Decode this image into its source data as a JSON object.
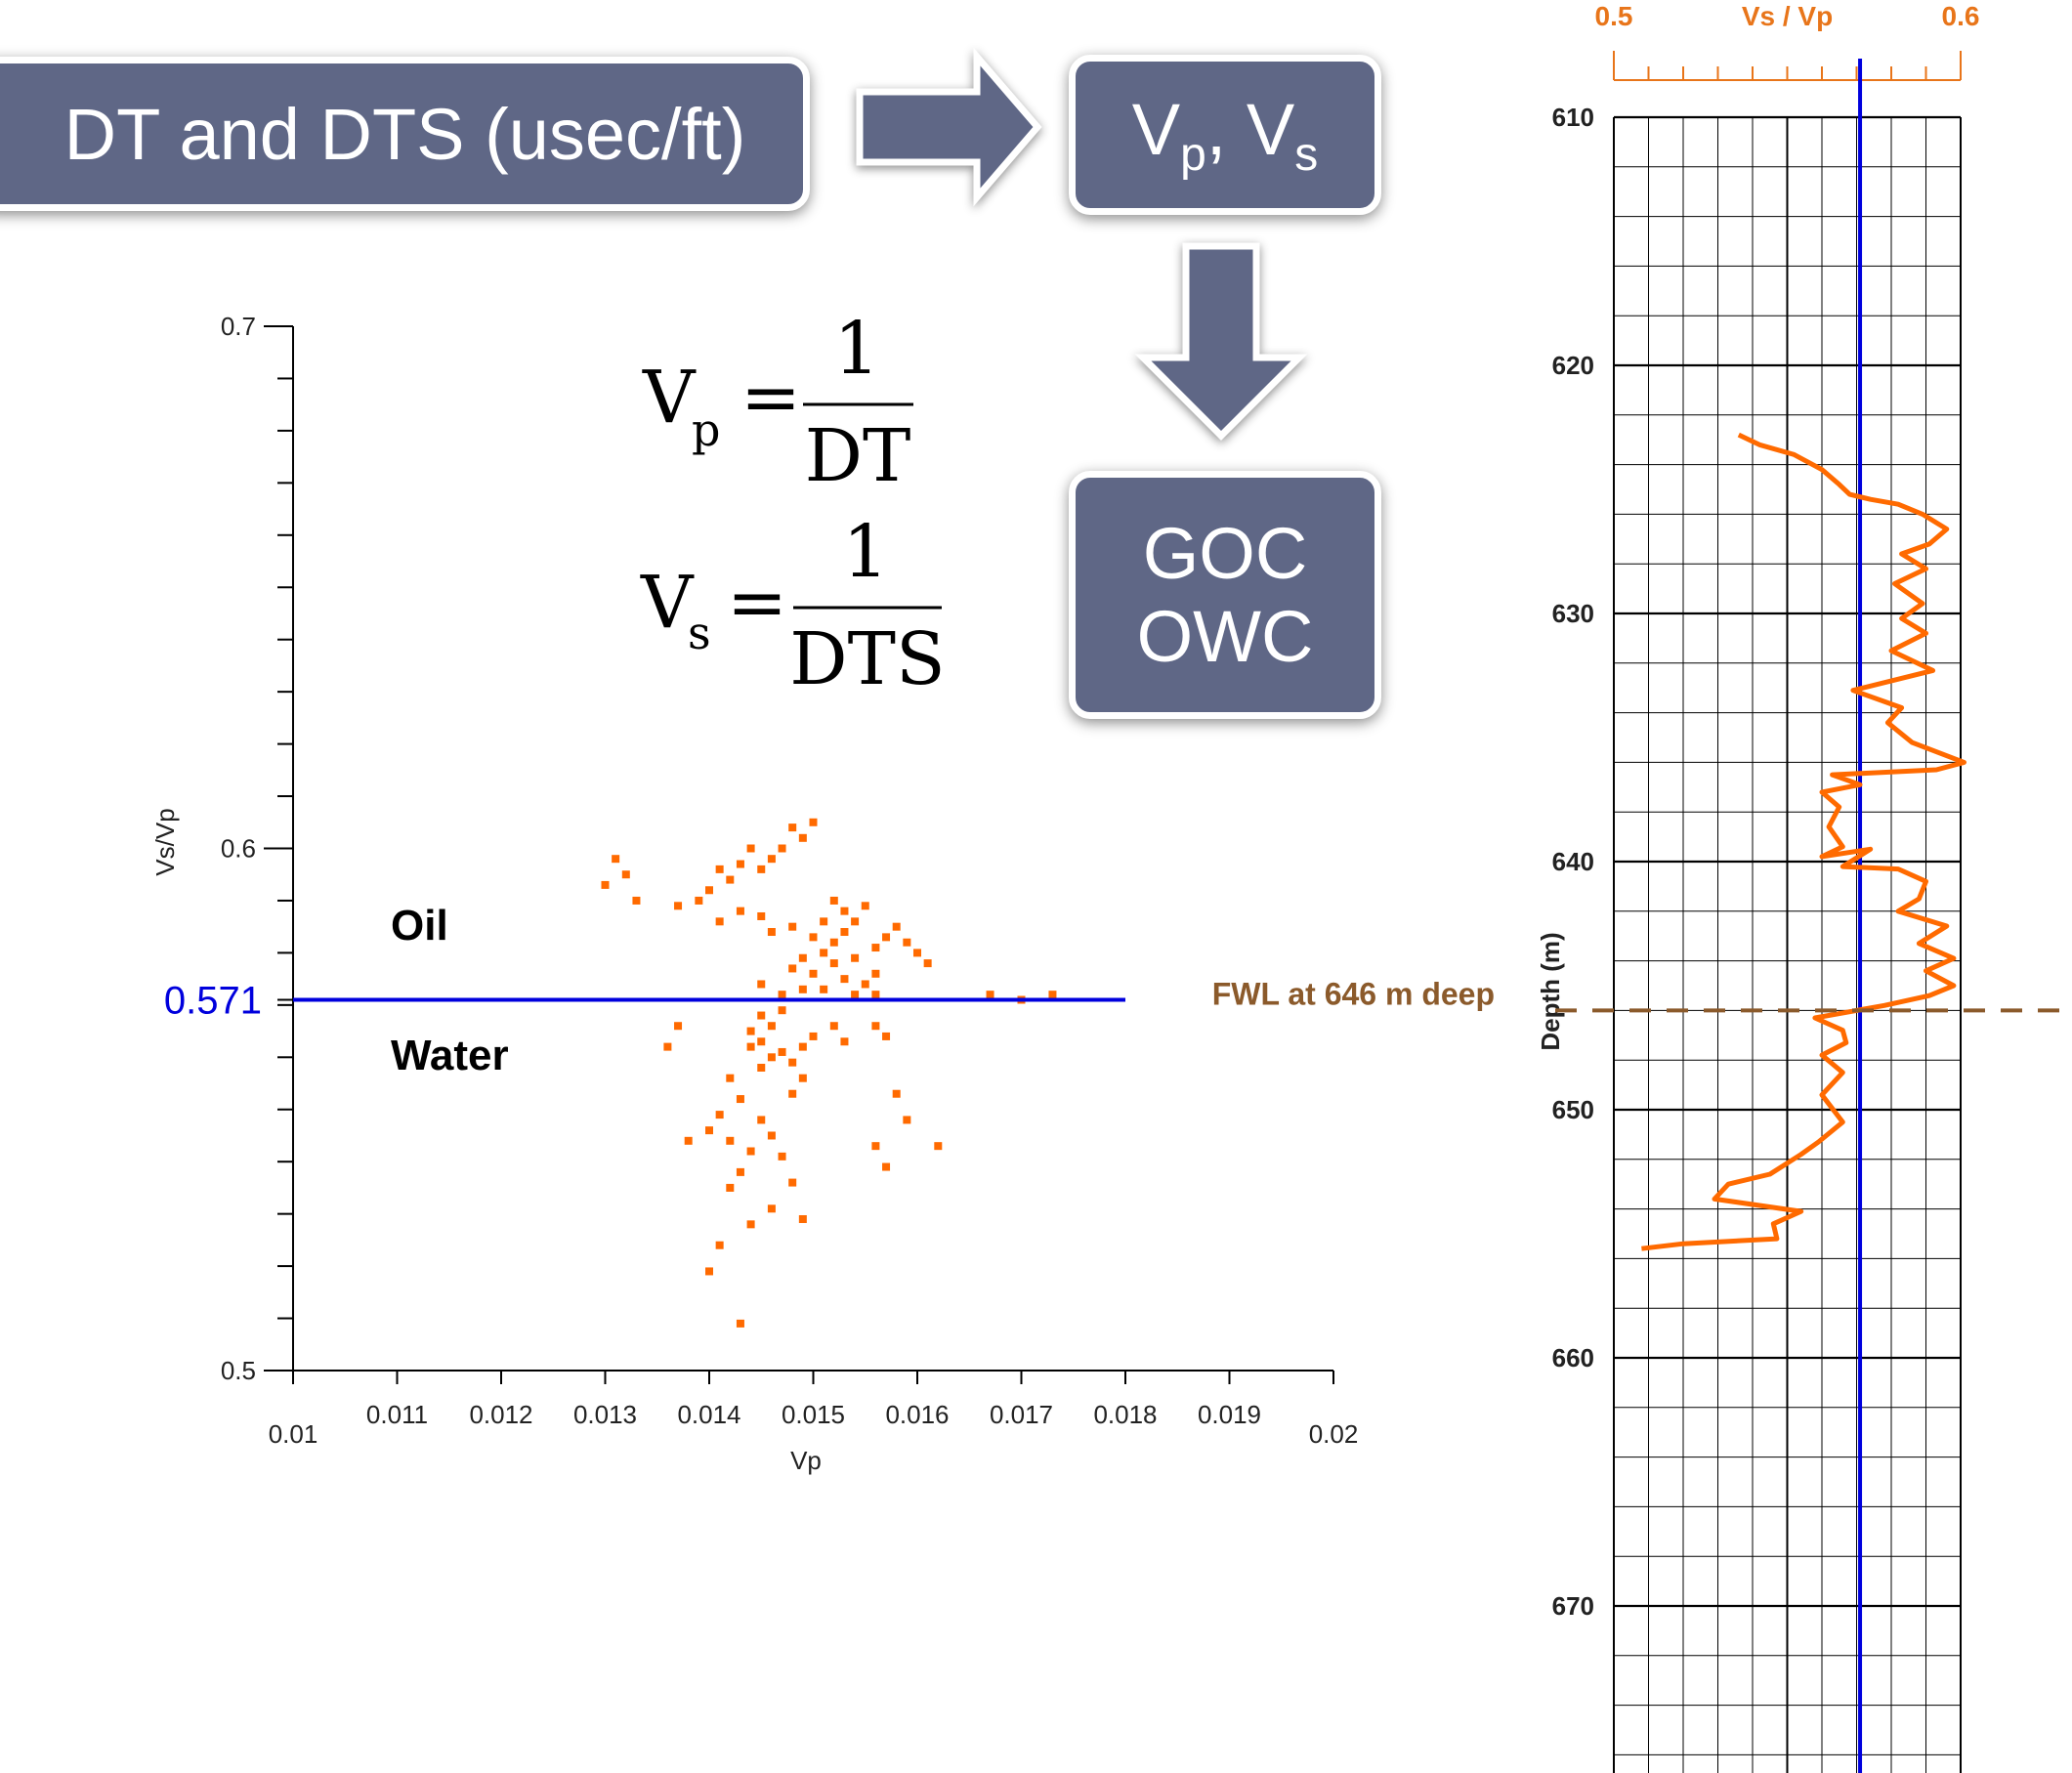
{
  "flow": {
    "box1": "DT and DTS (usec/ft)",
    "box2_v": "V",
    "box2_p": "p",
    "box2_sep": ", V",
    "box2_s": "s",
    "box3_line1": "GOC",
    "box3_line2": "OWC"
  },
  "formulas": {
    "vp_lhs": "V",
    "vp_sub": "p",
    "vp_num": "1",
    "vp_den": "DT",
    "vs_lhs": "V",
    "vs_sub": "s",
    "vs_num": "1",
    "vs_den": "DTS",
    "eq": "="
  },
  "colors": {
    "box": "#5f6786",
    "points": "#ff6a00",
    "threshold": "#0000dd",
    "fwl": "#8b5a2b",
    "track_header": "#e8751a"
  },
  "chart_data": [
    {
      "type": "scatter",
      "xlabel": "Vp",
      "ylabel": "Vs/Vp",
      "xlim": [
        0.01,
        0.02
      ],
      "ylim": [
        0.5,
        0.7
      ],
      "x_ticks": [
        "0.01",
        "0.011",
        "0.012",
        "0.013",
        "0.014",
        "0.015",
        "0.016",
        "0.017",
        "0.018",
        "0.019",
        "0.02"
      ],
      "y_ticks": [
        "0.5",
        "0.6",
        "0.7"
      ],
      "threshold": {
        "value": 0.571,
        "label": "0.571",
        "x_range": [
          0.01,
          0.018
        ]
      },
      "region_labels": {
        "above": "Oil",
        "below": "Water"
      },
      "points": [
        [
          0.015,
          0.605
        ],
        [
          0.0149,
          0.602
        ],
        [
          0.0148,
          0.604
        ],
        [
          0.0147,
          0.6
        ],
        [
          0.0146,
          0.598
        ],
        [
          0.0145,
          0.596
        ],
        [
          0.0144,
          0.6
        ],
        [
          0.0143,
          0.597
        ],
        [
          0.0142,
          0.594
        ],
        [
          0.0141,
          0.596
        ],
        [
          0.014,
          0.592
        ],
        [
          0.0139,
          0.59
        ],
        [
          0.0137,
          0.589
        ],
        [
          0.0132,
          0.595
        ],
        [
          0.0131,
          0.598
        ],
        [
          0.013,
          0.593
        ],
        [
          0.0133,
          0.59
        ],
        [
          0.0141,
          0.586
        ],
        [
          0.0143,
          0.588
        ],
        [
          0.0145,
          0.587
        ],
        [
          0.0146,
          0.584
        ],
        [
          0.0148,
          0.585
        ],
        [
          0.0151,
          0.586
        ],
        [
          0.0152,
          0.59
        ],
        [
          0.0153,
          0.588
        ],
        [
          0.0154,
          0.586
        ],
        [
          0.0155,
          0.589
        ],
        [
          0.0153,
          0.584
        ],
        [
          0.0152,
          0.582
        ],
        [
          0.0151,
          0.58
        ],
        [
          0.015,
          0.583
        ],
        [
          0.0149,
          0.579
        ],
        [
          0.0148,
          0.577
        ],
        [
          0.015,
          0.576
        ],
        [
          0.0152,
          0.578
        ],
        [
          0.0154,
          0.579
        ],
        [
          0.0156,
          0.581
        ],
        [
          0.0157,
          0.583
        ],
        [
          0.0158,
          0.585
        ],
        [
          0.0159,
          0.582
        ],
        [
          0.016,
          0.58
        ],
        [
          0.0161,
          0.578
        ],
        [
          0.0156,
          0.576
        ],
        [
          0.0155,
          0.574
        ],
        [
          0.0153,
          0.575
        ],
        [
          0.0151,
          0.573
        ],
        [
          0.0149,
          0.573
        ],
        [
          0.0147,
          0.572
        ],
        [
          0.0145,
          0.574
        ],
        [
          0.0154,
          0.572
        ],
        [
          0.0156,
          0.572
        ],
        [
          0.0167,
          0.572
        ],
        [
          0.017,
          0.571
        ],
        [
          0.0173,
          0.572
        ],
        [
          0.0145,
          0.568
        ],
        [
          0.0144,
          0.565
        ],
        [
          0.0145,
          0.563
        ],
        [
          0.0146,
          0.566
        ],
        [
          0.0147,
          0.569
        ],
        [
          0.0144,
          0.562
        ],
        [
          0.0146,
          0.56
        ],
        [
          0.0145,
          0.558
        ],
        [
          0.0147,
          0.561
        ],
        [
          0.0148,
          0.559
        ],
        [
          0.0149,
          0.562
        ],
        [
          0.015,
          0.564
        ],
        [
          0.0152,
          0.566
        ],
        [
          0.0153,
          0.563
        ],
        [
          0.0156,
          0.566
        ],
        [
          0.0157,
          0.564
        ],
        [
          0.0149,
          0.556
        ],
        [
          0.0148,
          0.553
        ],
        [
          0.0137,
          0.566
        ],
        [
          0.0136,
          0.562
        ],
        [
          0.0142,
          0.556
        ],
        [
          0.0143,
          0.552
        ],
        [
          0.0145,
          0.548
        ],
        [
          0.0141,
          0.549
        ],
        [
          0.014,
          0.546
        ],
        [
          0.0138,
          0.544
        ],
        [
          0.0142,
          0.544
        ],
        [
          0.0144,
          0.542
        ],
        [
          0.0146,
          0.545
        ],
        [
          0.0147,
          0.541
        ],
        [
          0.0143,
          0.538
        ],
        [
          0.0142,
          0.535
        ],
        [
          0.0148,
          0.536
        ],
        [
          0.0146,
          0.531
        ],
        [
          0.0144,
          0.528
        ],
        [
          0.0149,
          0.529
        ],
        [
          0.0156,
          0.543
        ],
        [
          0.0157,
          0.539
        ],
        [
          0.0158,
          0.553
        ],
        [
          0.0159,
          0.548
        ],
        [
          0.0162,
          0.543
        ],
        [
          0.0141,
          0.524
        ],
        [
          0.014,
          0.519
        ],
        [
          0.0143,
          0.509
        ]
      ]
    },
    {
      "type": "line",
      "header_title": "Vs / Vp",
      "header_min": "0.5",
      "header_max": "0.6",
      "xlim": [
        0.5,
        0.6
      ],
      "ylabel": "Depth (m)",
      "y_ticks": [
        "610",
        "620",
        "630",
        "640",
        "650",
        "660",
        "670"
      ],
      "ylim": [
        610,
        678
      ],
      "cutoff": 0.571,
      "fwl": {
        "depth": 646,
        "label": "FWL at 646 m deep"
      },
      "series": [
        {
          "points": [
            [
              0.536,
              622.8
            ],
            [
              0.542,
              623.2
            ],
            [
              0.552,
              623.6
            ],
            [
              0.56,
              624.2
            ],
            [
              0.565,
              624.8
            ],
            [
              0.568,
              625.2
            ],
            [
              0.574,
              625.4
            ],
            [
              0.582,
              625.6
            ],
            [
              0.589,
              626.0
            ],
            [
              0.596,
              626.6
            ],
            [
              0.591,
              627.2
            ],
            [
              0.583,
              627.6
            ],
            [
              0.59,
              628.2
            ],
            [
              0.581,
              628.8
            ],
            [
              0.589,
              629.6
            ],
            [
              0.583,
              630.2
            ],
            [
              0.59,
              630.8
            ],
            [
              0.58,
              631.5
            ],
            [
              0.592,
              632.3
            ],
            [
              0.569,
              633.1
            ],
            [
              0.583,
              633.8
            ],
            [
              0.579,
              634.4
            ],
            [
              0.586,
              635.2
            ],
            [
              0.601,
              636.0
            ],
            [
              0.593,
              636.3
            ],
            [
              0.563,
              636.5
            ],
            [
              0.571,
              636.9
            ],
            [
              0.56,
              637.2
            ],
            [
              0.565,
              637.8
            ],
            [
              0.562,
              638.6
            ],
            [
              0.566,
              639.4
            ],
            [
              0.56,
              639.8
            ],
            [
              0.574,
              639.5
            ],
            [
              0.566,
              640.2
            ],
            [
              0.582,
              640.3
            ],
            [
              0.59,
              640.8
            ],
            [
              0.588,
              641.5
            ],
            [
              0.582,
              642.0
            ],
            [
              0.596,
              642.6
            ],
            [
              0.588,
              643.3
            ],
            [
              0.598,
              643.9
            ],
            [
              0.59,
              644.4
            ],
            [
              0.598,
              645.0
            ],
            [
              0.591,
              645.4
            ],
            [
              0.578,
              645.8
            ],
            [
              0.57,
              646.0
            ],
            [
              0.558,
              646.3
            ],
            [
              0.566,
              646.8
            ],
            [
              0.567,
              647.3
            ],
            [
              0.56,
              647.8
            ],
            [
              0.566,
              648.5
            ],
            [
              0.56,
              649.4
            ],
            [
              0.566,
              650.5
            ],
            [
              0.559,
              651.3
            ],
            [
              0.554,
              651.8
            ],
            [
              0.545,
              652.6
            ],
            [
              0.533,
              653.0
            ],
            [
              0.529,
              653.6
            ],
            [
              0.554,
              654.1
            ],
            [
              0.546,
              654.6
            ],
            [
              0.547,
              655.2
            ],
            [
              0.52,
              655.4
            ],
            [
              0.508,
              655.6
            ]
          ]
        }
      ]
    }
  ]
}
